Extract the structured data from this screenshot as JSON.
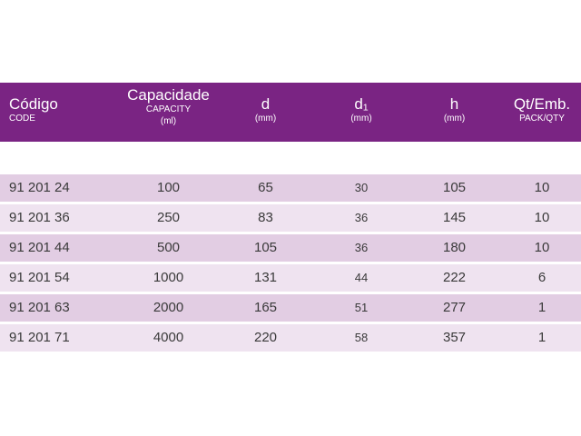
{
  "header": {
    "code": {
      "main": "Código",
      "sub": "CODE"
    },
    "capacity": {
      "main": "Capacidade",
      "sub1": "CAPACITY",
      "sub2": "(ml)"
    },
    "d": {
      "main": "d",
      "sub": "(mm)"
    },
    "d1": {
      "main": "d₁",
      "sub": "(mm)"
    },
    "h": {
      "main": "h",
      "sub": "(mm)"
    },
    "qt": {
      "main": "Qt/Emb.",
      "sub": "PACK/QTY"
    }
  },
  "rows": [
    {
      "code": "91 201 24",
      "capacity": "100",
      "d": "65",
      "d1": "30",
      "h": "105",
      "qt": "10"
    },
    {
      "code": "91 201 36",
      "capacity": "250",
      "d": "83",
      "d1": "36",
      "h": "145",
      "qt": "10"
    },
    {
      "code": "91 201 44",
      "capacity": "500",
      "d": "105",
      "d1": "36",
      "h": "180",
      "qt": "10"
    },
    {
      "code": "91 201 54",
      "capacity": "1000",
      "d": "131",
      "d1": "44",
      "h": "222",
      "qt": "6"
    },
    {
      "code": "91 201 63",
      "capacity": "2000",
      "d": "165",
      "d1": "51",
      "h": "277",
      "qt": "1"
    },
    {
      "code": "91 201 71",
      "capacity": "4000",
      "d": "220",
      "d1": "58",
      "h": "357",
      "qt": "1"
    }
  ],
  "colors": {
    "header_bg": "#7a2483",
    "row_odd": "#e2cde3",
    "row_even": "#efe3f0"
  }
}
